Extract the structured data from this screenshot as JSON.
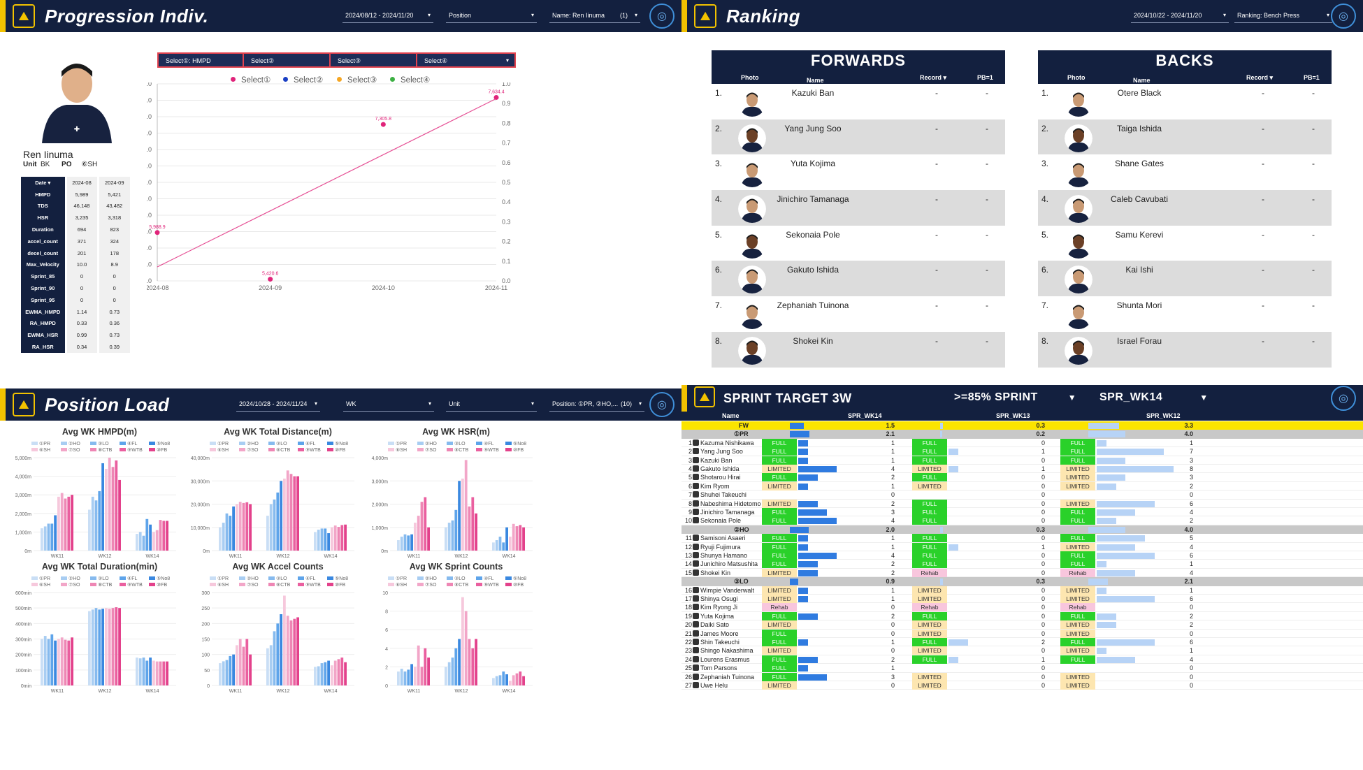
{
  "progression": {
    "title": "Progression Indiv.",
    "date_range": "2024/08/12 - 2024/11/20",
    "position_label": "Position",
    "name_filter": "Name: Ren Iinuma",
    "name_count": "(1)",
    "player_name": "Ren Iinuma",
    "unit_label": "Unit",
    "unit_value": "BK",
    "po_label": "PO",
    "po_value": "⑥SH",
    "table_header": [
      "Date ▾",
      "2024-08",
      "2024-09"
    ],
    "table_rows": [
      [
        "HMPD",
        "5,989",
        "5,421"
      ],
      [
        "TDS",
        "46,148",
        "43,482"
      ],
      [
        "HSR",
        "3,235",
        "3,318"
      ],
      [
        "Duration",
        "694",
        "823"
      ],
      [
        "accel_count",
        "371",
        "324"
      ],
      [
        "decel_count",
        "201",
        "178"
      ],
      [
        "Max_Velocity",
        "10.0",
        "8.9"
      ],
      [
        "Sprint_85",
        "0",
        "0"
      ],
      [
        "Sprint_90",
        "0",
        "0"
      ],
      [
        "Sprint_95",
        "0",
        "0"
      ],
      [
        "EWMA_HMPD",
        "1.14",
        "0.73"
      ],
      [
        "RA_HMPD",
        "0.33",
        "0.36"
      ],
      [
        "EWMA_HSR",
        "0.99",
        "0.73"
      ],
      [
        "RA_HSR",
        "0.34",
        "0.39"
      ]
    ],
    "selects": [
      "Select①: HMPD",
      "Select②",
      "Select③",
      "Select④"
    ],
    "legend": [
      "Select①",
      "Select②",
      "Select③",
      "Select④"
    ],
    "legend_colors": [
      "#e0247a",
      "#1a3fc4",
      "#f5a623",
      "#3cb043"
    ]
  },
  "chart_data": [
    {
      "type": "line",
      "title": "Progression Indiv.",
      "x": [
        "2024-08",
        "2024-09",
        "2024-10",
        "2024-11"
      ],
      "points": [
        5988.9,
        5420.6,
        7305.8,
        7634.4
      ],
      "point_labels": [
        "5,988.9",
        "5,420.6",
        "7,305.8",
        "7,634.4"
      ],
      "trend_start": 5570,
      "trend_end": 7620,
      "ylim": [
        5400,
        7800
      ],
      "yticks": [
        "7,800.0",
        "7,600.0",
        "7,400.0",
        "7,200.0",
        "7,000.0",
        "6,800.0",
        "6,600.0",
        "6,400.0",
        "6,200.0",
        "6,000.0",
        "5,800.0",
        "5,600.0",
        "5,400.0"
      ],
      "y2ticks": [
        "1.0",
        "0.9",
        "0.8",
        "0.7",
        "0.6",
        "0.5",
        "0.4",
        "0.3",
        "0.2",
        "0.1",
        "0.0"
      ]
    },
    {
      "type": "bar",
      "title": "Avg WK HMPD(m)",
      "yticks": [
        "5,000m",
        "4,000m",
        "3,000m",
        "2,000m",
        "1,000m",
        "0m"
      ],
      "ymax": 5000,
      "categories": [
        "WK11",
        "WK12",
        "WK14"
      ],
      "series": [
        [
          1200,
          2200,
          900
        ],
        [
          1300,
          2900,
          1000
        ],
        [
          1450,
          2700,
          800
        ],
        [
          1450,
          3200,
          1700
        ],
        [
          1900,
          4700,
          1400
        ],
        [
          2900,
          4400,
          1000
        ],
        [
          3100,
          5000,
          1100
        ],
        [
          2800,
          4500,
          1650
        ],
        [
          2900,
          4850,
          1600
        ],
        [
          3000,
          3800,
          1600
        ]
      ]
    },
    {
      "type": "bar",
      "title": "Avg WK Total Distance(m)",
      "yticks": [
        "40,000m",
        "30,000m",
        "20,000m",
        "10,000m",
        "0m"
      ],
      "ymax": 40000,
      "categories": [
        "WK11",
        "WK12",
        "WK14"
      ],
      "series": [
        [
          10000,
          15000,
          8000
        ],
        [
          12000,
          20000,
          9000
        ],
        [
          16000,
          22000,
          9500
        ],
        [
          15000,
          25000,
          9500
        ],
        [
          19000,
          30000,
          7500
        ],
        [
          20000,
          31000,
          10000
        ],
        [
          21000,
          34500,
          10800
        ],
        [
          20500,
          33000,
          10200
        ],
        [
          20800,
          32000,
          11000
        ],
        [
          20000,
          32000,
          11200
        ]
      ]
    },
    {
      "type": "bar",
      "title": "Avg WK HSR(m)",
      "yticks": [
        "4,000m",
        "3,000m",
        "2,000m",
        "1,000m",
        "0m"
      ],
      "ymax": 4000,
      "categories": [
        "WK11",
        "WK12",
        "WK14"
      ],
      "series": [
        [
          450,
          1000,
          350
        ],
        [
          600,
          1200,
          450
        ],
        [
          700,
          1300,
          600
        ],
        [
          650,
          1750,
          350
        ],
        [
          700,
          3000,
          1000
        ],
        [
          1200,
          3100,
          600
        ],
        [
          1500,
          3900,
          1150
        ],
        [
          2100,
          1900,
          1050
        ],
        [
          2300,
          2300,
          1100
        ],
        [
          1000,
          1600,
          1000
        ]
      ]
    },
    {
      "type": "bar",
      "title": "Avg WK Total Duration(min)",
      "yticks": [
        "600min",
        "500min",
        "400min",
        "300min",
        "200min",
        "100min",
        "0min"
      ],
      "ymax": 600,
      "categories": [
        "WK11",
        "WK12",
        "WK14"
      ],
      "series": [
        [
          300,
          480,
          180
        ],
        [
          320,
          490,
          175
        ],
        [
          300,
          500,
          180
        ],
        [
          330,
          490,
          160
        ],
        [
          290,
          495,
          180
        ],
        [
          300,
          500,
          160
        ],
        [
          310,
          495,
          155
        ],
        [
          295,
          500,
          155
        ],
        [
          290,
          505,
          155
        ],
        [
          310,
          500,
          155
        ]
      ]
    },
    {
      "type": "bar",
      "title": "Avg WK Accel Counts",
      "yticks": [
        "300",
        "250",
        "200",
        "150",
        "100",
        "50",
        "0"
      ],
      "ymax": 300,
      "categories": [
        "WK11",
        "WK12",
        "WK14"
      ],
      "series": [
        [
          72,
          120,
          60
        ],
        [
          78,
          130,
          62
        ],
        [
          82,
          175,
          72
        ],
        [
          95,
          200,
          75
        ],
        [
          100,
          230,
          80
        ],
        [
          130,
          290,
          65
        ],
        [
          150,
          225,
          80
        ],
        [
          125,
          210,
          85
        ],
        [
          150,
          215,
          90
        ],
        [
          100,
          220,
          75
        ]
      ]
    },
    {
      "type": "bar",
      "title": "Avg WK Sprint Counts",
      "yticks": [
        "10",
        "8",
        "6",
        "4",
        "2",
        "0"
      ],
      "ymax": 10,
      "categories": [
        "WK11",
        "WK12",
        "WK14"
      ],
      "series": [
        [
          1.5,
          2.0,
          0.8
        ],
        [
          1.8,
          2.5,
          1.0
        ],
        [
          1.5,
          3.0,
          1.1
        ],
        [
          1.7,
          4.0,
          1.5
        ],
        [
          2.3,
          5.0,
          1.2
        ],
        [
          2.0,
          9.5,
          0.5
        ],
        [
          4.3,
          8.0,
          1.1
        ],
        [
          2.0,
          5.0,
          1.3
        ],
        [
          4.0,
          4.0,
          1.5
        ],
        [
          3.0,
          5.0,
          1.0
        ]
      ]
    }
  ],
  "ranking": {
    "title": "Ranking",
    "date_range": "2024/10/22 - 2024/11/20",
    "ranking_filter": "Ranking: Bench Press",
    "forwards_title": "FORWARDS",
    "backs_title": "BACKS",
    "columns": [
      "Photo",
      "Name",
      "Record ▾",
      "PB=1"
    ],
    "forwards": [
      {
        "rank": "1.",
        "name": "Kazuki Ban",
        "record": "-",
        "pb": "-"
      },
      {
        "rank": "2.",
        "name": "Yang Jung Soo",
        "record": "-",
        "pb": "-"
      },
      {
        "rank": "3.",
        "name": "Yuta Kojima",
        "record": "-",
        "pb": "-"
      },
      {
        "rank": "4.",
        "name": "Jinichiro Tamanaga",
        "record": "-",
        "pb": "-"
      },
      {
        "rank": "5.",
        "name": "Sekonaia Pole",
        "record": "-",
        "pb": "-"
      },
      {
        "rank": "6.",
        "name": "Gakuto Ishida",
        "record": "-",
        "pb": "-"
      },
      {
        "rank": "7.",
        "name": "Zephaniah Tuinona",
        "record": "-",
        "pb": "-"
      },
      {
        "rank": "8.",
        "name": "Shokei Kin",
        "record": "-",
        "pb": "-"
      }
    ],
    "backs": [
      {
        "rank": "1.",
        "name": "Otere Black",
        "record": "-",
        "pb": "-"
      },
      {
        "rank": "2.",
        "name": "Taiga Ishida",
        "record": "-",
        "pb": "-"
      },
      {
        "rank": "3.",
        "name": "Shane Gates",
        "record": "-",
        "pb": "-"
      },
      {
        "rank": "4.",
        "name": "Caleb Cavubati",
        "record": "-",
        "pb": "-"
      },
      {
        "rank": "5.",
        "name": "Samu Kerevi",
        "record": "-",
        "pb": "-"
      },
      {
        "rank": "6.",
        "name": "Kai Ishi",
        "record": "-",
        "pb": "-"
      },
      {
        "rank": "7.",
        "name": "Shunta Mori",
        "record": "-",
        "pb": "-"
      },
      {
        "rank": "8.",
        "name": "Israel Forau",
        "record": "-",
        "pb": "-"
      }
    ]
  },
  "position_load": {
    "title": "Position Load",
    "date_range": "2024/10/28 - 2024/11/24",
    "wk_label": "WK",
    "unit_label": "Unit",
    "position_filter": "Position: ①PR, ②HO,...",
    "position_count": "(10)",
    "legend": [
      "①PR",
      "②HO",
      "③LO",
      "④FL",
      "⑤No8",
      "⑥SH",
      "⑦SO",
      "⑧CTB",
      "⑨WTB",
      "⑩FB"
    ],
    "legend_colors": [
      "#c9def5",
      "#a8cdf2",
      "#86baee",
      "#5ea4ea",
      "#3a88e0",
      "#f6c8dc",
      "#f2a6c8",
      "#ee86b4",
      "#ea5f9f",
      "#e3418b"
    ]
  },
  "sprint": {
    "title": "SPRINT TARGET 3W",
    "threshold": ">=85% SPRINT",
    "week": "SPR_WK14",
    "headers": [
      "Name",
      "SPR_WK14",
      "SPR_WK13",
      "SPR_WK12"
    ],
    "fw_row": {
      "label": "FW",
      "v14": "1.5",
      "v13": "0.3",
      "v12": "3.3"
    },
    "groups": [
      {
        "label": "①PR",
        "v14": "2.1",
        "v13": "0.2",
        "v12": "4.0",
        "rows": [
          {
            "n": "1",
            "name": "Kazuma Nishikawa",
            "s14": "FULL",
            "v14": "1",
            "s13": "FULL",
            "v13": "0",
            "s12": "FULL",
            "v12": "1"
          },
          {
            "n": "2",
            "name": "Yang Jung Soo",
            "s14": "FULL",
            "v14": "1",
            "s13": "FULL",
            "v13": "1",
            "s12": "FULL",
            "v12": "7"
          },
          {
            "n": "3",
            "name": "Kazuki Ban",
            "s14": "FULL",
            "v14": "1",
            "s13": "FULL",
            "v13": "0",
            "s12": "FULL",
            "v12": "3"
          },
          {
            "n": "4",
            "name": "Gakuto Ishida",
            "s14": "LIMITED",
            "v14": "4",
            "s13": "LIMITED",
            "v13": "1",
            "s12": "LIMITED",
            "v12": "8"
          },
          {
            "n": "5",
            "name": "Shotarou Hirai",
            "s14": "FULL",
            "v14": "2",
            "s13": "FULL",
            "v13": "0",
            "s12": "LIMITED",
            "v12": "3"
          },
          {
            "n": "6",
            "name": "Kim Ryom",
            "s14": "LIMITED",
            "v14": "1",
            "s13": "LIMITED",
            "v13": "0",
            "s12": "LIMITED",
            "v12": "2"
          },
          {
            "n": "7",
            "name": "Shuhei Takeuchi",
            "s14": "",
            "v14": "0",
            "s13": "",
            "v13": "0",
            "s12": "",
            "v12": "0"
          },
          {
            "n": "8",
            "name": "Nabeshima Hidetomo",
            "s14": "LIMITED",
            "v14": "2",
            "s13": "FULL",
            "v13": "0",
            "s12": "LIMITED",
            "v12": "6"
          },
          {
            "n": "9",
            "name": "Jinichiro Tamanaga",
            "s14": "FULL",
            "v14": "3",
            "s13": "FULL",
            "v13": "0",
            "s12": "FULL",
            "v12": "4"
          },
          {
            "n": "10",
            "name": "Sekonaia Pole",
            "s14": "FULL",
            "v14": "4",
            "s13": "FULL",
            "v13": "0",
            "s12": "FULL",
            "v12": "2"
          }
        ]
      },
      {
        "label": "②HO",
        "v14": "2.0",
        "v13": "0.3",
        "v12": "4.0",
        "rows": [
          {
            "n": "11",
            "name": "Samisoni Asaeri",
            "s14": "FULL",
            "v14": "1",
            "s13": "FULL",
            "v13": "0",
            "s12": "FULL",
            "v12": "5"
          },
          {
            "n": "12",
            "name": "Ryuji Fujimura",
            "s14": "FULL",
            "v14": "1",
            "s13": "FULL",
            "v13": "1",
            "s12": "LIMITED",
            "v12": "4"
          },
          {
            "n": "13",
            "name": "Shunya Hamano",
            "s14": "FULL",
            "v14": "4",
            "s13": "FULL",
            "v13": "0",
            "s12": "FULL",
            "v12": "6"
          },
          {
            "n": "14",
            "name": "Junichiro Matsushita",
            "s14": "FULL",
            "v14": "2",
            "s13": "FULL",
            "v13": "0",
            "s12": "FULL",
            "v12": "1"
          },
          {
            "n": "15",
            "name": "Shokei Kin",
            "s14": "LIMITED",
            "v14": "2",
            "s13": "Rehab",
            "v13": "0",
            "s12": "Rehab",
            "v12": "4"
          }
        ]
      },
      {
        "label": "③LO",
        "v14": "0.9",
        "v13": "0.3",
        "v12": "2.1",
        "rows": [
          {
            "n": "16",
            "name": "Wimpie Vanderwalt",
            "s14": "LIMITED",
            "v14": "1",
            "s13": "LIMITED",
            "v13": "0",
            "s12": "LIMITED",
            "v12": "1"
          },
          {
            "n": "17",
            "name": "Shinya Osugi",
            "s14": "LIMITED",
            "v14": "1",
            "s13": "LIMITED",
            "v13": "0",
            "s12": "LIMITED",
            "v12": "6"
          },
          {
            "n": "18",
            "name": "Kim Ryong Ji",
            "s14": "Rehab",
            "v14": "0",
            "s13": "Rehab",
            "v13": "0",
            "s12": "Rehab",
            "v12": "0"
          },
          {
            "n": "19",
            "name": "Yuta Kojima",
            "s14": "FULL",
            "v14": "2",
            "s13": "FULL",
            "v13": "0",
            "s12": "FULL",
            "v12": "2"
          },
          {
            "n": "20",
            "name": "Daiki Sato",
            "s14": "LIMITED",
            "v14": "0",
            "s13": "LIMITED",
            "v13": "0",
            "s12": "LIMITED",
            "v12": "2"
          },
          {
            "n": "21",
            "name": "James Moore",
            "s14": "FULL",
            "v14": "0",
            "s13": "LIMITED",
            "v13": "0",
            "s12": "LIMITED",
            "v12": "0"
          },
          {
            "n": "22",
            "name": "Shin Takeuchi",
            "s14": "FULL",
            "v14": "1",
            "s13": "FULL",
            "v13": "2",
            "s12": "FULL",
            "v12": "6"
          },
          {
            "n": "23",
            "name": "Shingo Nakashima",
            "s14": "LIMITED",
            "v14": "0",
            "s13": "LIMITED",
            "v13": "0",
            "s12": "LIMITED",
            "v12": "1"
          },
          {
            "n": "24",
            "name": "Lourens Erasmus",
            "s14": "FULL",
            "v14": "2",
            "s13": "FULL",
            "v13": "1",
            "s12": "FULL",
            "v12": "4"
          },
          {
            "n": "25",
            "name": "Tom Parsons",
            "s14": "FULL",
            "v14": "1",
            "s13": "",
            "v13": "0",
            "s12": "",
            "v12": "0"
          },
          {
            "n": "26",
            "name": "Zephaniah Tuinona",
            "s14": "FULL",
            "v14": "3",
            "s13": "LIMITED",
            "v13": "0",
            "s12": "LIMITED",
            "v12": "0"
          },
          {
            "n": "27",
            "name": "Uwe Helu",
            "s14": "LIMITED",
            "v14": "0",
            "s13": "LIMITED",
            "v13": "0",
            "s12": "LIMITED",
            "v12": "0"
          }
        ]
      }
    ]
  }
}
